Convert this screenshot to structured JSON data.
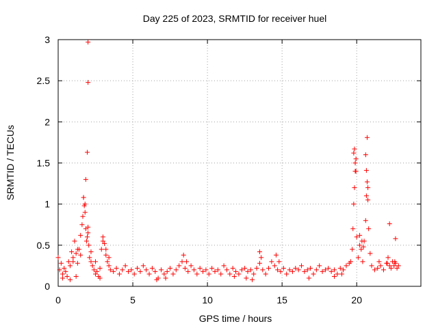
{
  "chart_data": {
    "type": "scatter",
    "title": "Day 225 of 2023, SRMTID for receiver huel",
    "xlabel": "GPS time / hours",
    "ylabel": "SRMTID / TECUs",
    "xlim": [
      0,
      24.3
    ],
    "ylim": [
      0,
      3
    ],
    "xticks": [
      0,
      5,
      10,
      15,
      20
    ],
    "xtick_labels": [
      "0",
      "5",
      "10",
      "15",
      "20"
    ],
    "yticks": [
      0,
      0.5,
      1,
      1.5,
      2,
      2.5,
      3
    ],
    "ytick_labels": [
      "0",
      "0.5",
      "1",
      "1.5",
      "2",
      "2.5",
      "3"
    ],
    "grid": true,
    "marker": "+",
    "series": [
      {
        "name": "SRMTID",
        "color": "#ff0000",
        "x": [
          0.0,
          0.1,
          0.2,
          0.3,
          0.4,
          0.5,
          0.6,
          0.7,
          0.8,
          0.9,
          1.0,
          1.1,
          1.2,
          1.3,
          1.4,
          1.5,
          1.6,
          1.65,
          1.7,
          1.75,
          1.8,
          1.85,
          1.9,
          1.95,
          2.0,
          2.05,
          2.1,
          2.2,
          2.3,
          2.4,
          2.5,
          2.6,
          2.7,
          2.8,
          2.9,
          3.0,
          3.1,
          3.2,
          3.3,
          3.4,
          3.5,
          3.7,
          3.9,
          4.1,
          4.3,
          4.5,
          4.7,
          4.9,
          5.1,
          5.3,
          5.5,
          5.7,
          5.9,
          6.1,
          6.3,
          6.5,
          6.7,
          6.9,
          7.1,
          7.3,
          7.5,
          7.7,
          7.9,
          8.1,
          8.3,
          8.5,
          8.7,
          8.9,
          9.1,
          9.3,
          9.5,
          9.7,
          9.9,
          10.1,
          10.3,
          10.5,
          10.7,
          10.9,
          11.1,
          11.3,
          11.5,
          11.7,
          11.9,
          12.1,
          12.3,
          12.5,
          12.7,
          12.9,
          13.1,
          13.3,
          13.5,
          13.7,
          13.9,
          14.1,
          14.3,
          14.5,
          14.7,
          14.9,
          15.1,
          15.3,
          15.5,
          15.7,
          15.9,
          16.1,
          16.3,
          16.5,
          16.7,
          16.9,
          17.1,
          17.3,
          17.5,
          17.7,
          17.9,
          18.1,
          18.3,
          18.5,
          18.7,
          18.9,
          19.1,
          19.3,
          19.5,
          19.6,
          19.7,
          19.75,
          19.8,
          19.85,
          19.9,
          19.95,
          20.0,
          20.1,
          20.2,
          20.3,
          20.4,
          20.5,
          20.6,
          20.65,
          20.7,
          20.75,
          20.8,
          20.9,
          21.0,
          21.2,
          21.4,
          21.6,
          21.8,
          22.0,
          22.1,
          22.2,
          22.3,
          22.4,
          22.5,
          22.6,
          22.7,
          22.8,
          1.0,
          1.3,
          1.5,
          2.2,
          2.5,
          3.0,
          3.2,
          3.4,
          8.4,
          8.6,
          13.5,
          13.6,
          14.6,
          14.8,
          20.2,
          20.35,
          20.45,
          21.5,
          22.05,
          22.55,
          0.3,
          0.8,
          1.2,
          2.8,
          6.6,
          7.2,
          11.8,
          12.6,
          13.0,
          16.8,
          18.5,
          19.0,
          1.7,
          1.8,
          1.85,
          1.95,
          2.0,
          2.0,
          2.0,
          19.8,
          19.85,
          19.9,
          19.95,
          20.6,
          20.65,
          20.7,
          20.75,
          22.2,
          22.6
        ],
        "y": [
          0.35,
          0.2,
          0.28,
          0.15,
          0.22,
          0.18,
          0.12,
          0.3,
          0.25,
          0.42,
          0.35,
          0.55,
          0.4,
          0.28,
          0.45,
          0.62,
          0.75,
          0.85,
          1.08,
          0.98,
          0.9,
          0.7,
          0.55,
          0.6,
          0.72,
          0.5,
          0.35,
          0.3,
          0.25,
          0.2,
          0.15,
          0.18,
          0.12,
          0.22,
          0.45,
          0.6,
          0.52,
          0.38,
          0.3,
          0.25,
          0.2,
          0.18,
          0.22,
          0.15,
          0.2,
          0.25,
          0.18,
          0.2,
          0.15,
          0.22,
          0.18,
          0.25,
          0.2,
          0.15,
          0.22,
          0.18,
          0.1,
          0.2,
          0.15,
          0.18,
          0.22,
          0.15,
          0.2,
          0.25,
          0.3,
          0.22,
          0.18,
          0.25,
          0.2,
          0.15,
          0.22,
          0.18,
          0.2,
          0.15,
          0.22,
          0.18,
          0.2,
          0.15,
          0.25,
          0.2,
          0.15,
          0.22,
          0.18,
          0.15,
          0.2,
          0.22,
          0.18,
          0.2,
          0.15,
          0.22,
          0.28,
          0.2,
          0.15,
          0.22,
          0.3,
          0.25,
          0.2,
          0.18,
          0.22,
          0.15,
          0.2,
          0.18,
          0.22,
          0.2,
          0.25,
          0.18,
          0.2,
          0.22,
          0.15,
          0.2,
          0.25,
          0.18,
          0.2,
          0.22,
          0.18,
          0.2,
          0.15,
          0.22,
          0.2,
          0.25,
          0.28,
          0.3,
          0.45,
          0.7,
          1.0,
          1.2,
          1.4,
          1.55,
          0.6,
          0.35,
          0.5,
          0.45,
          0.3,
          0.55,
          0.8,
          1.1,
          1.27,
          1.05,
          0.7,
          0.4,
          0.25,
          0.2,
          0.22,
          0.25,
          0.2,
          0.28,
          0.35,
          0.25,
          0.22,
          0.3,
          0.25,
          0.28,
          0.22,
          0.25,
          0.3,
          0.45,
          0.38,
          0.42,
          0.3,
          0.55,
          0.45,
          0.35,
          0.38,
          0.3,
          0.42,
          0.35,
          0.38,
          0.3,
          0.62,
          0.55,
          0.48,
          0.3,
          0.28,
          0.3,
          0.1,
          0.08,
          0.12,
          0.1,
          0.08,
          0.1,
          0.12,
          0.1,
          0.08,
          0.1,
          0.12,
          0.15,
          1.08,
          1.0,
          1.3,
          1.63,
          2.48,
          2.97,
          0.65,
          1.62,
          1.67,
          1.5,
          1.4,
          1.6,
          1.41,
          1.81,
          1.2,
          0.76,
          0.58
        ]
      }
    ]
  }
}
